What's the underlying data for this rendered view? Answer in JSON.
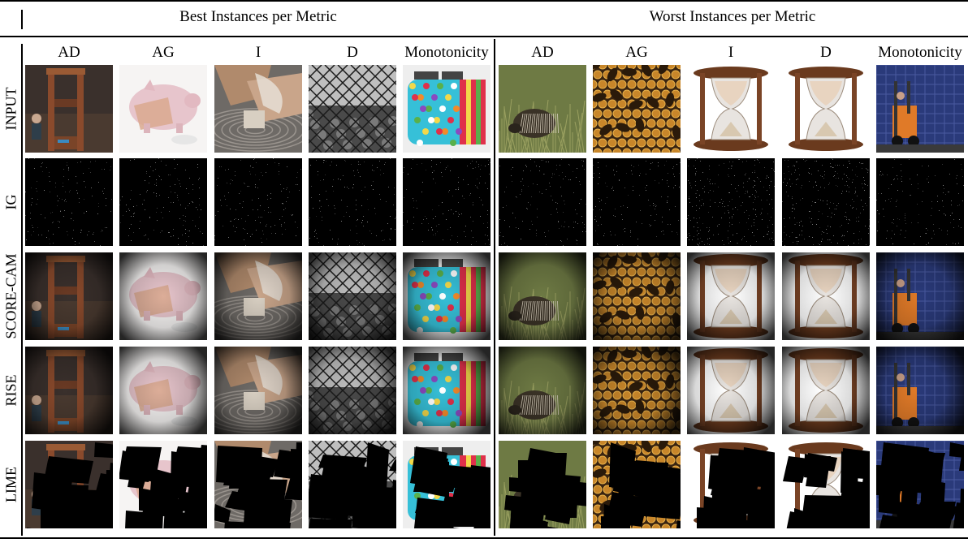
{
  "headers": {
    "best": "Best Instances per Metric",
    "worst": "Worst Instances per Metric"
  },
  "columns": [
    "AD",
    "AG",
    "I",
    "D",
    "Monotonicity",
    "AD",
    "AG",
    "I",
    "D",
    "Monotonicity"
  ],
  "rows": [
    {
      "label": "INPUT"
    },
    {
      "label": "IG"
    },
    {
      "label": "SCORE-CAM"
    },
    {
      "label": "RISE"
    },
    {
      "label": "LIME"
    }
  ],
  "images": [
    {
      "subject": "guillotine",
      "palette": [
        "#5a3a28",
        "#8a5a3c",
        "#2c2a2e"
      ]
    },
    {
      "subject": "piggy-bank",
      "palette": [
        "#e9c9cf",
        "#d6a08a",
        "#f4f1f0"
      ]
    },
    {
      "subject": "pottery-wheel",
      "palette": [
        "#c9b09a",
        "#8c7a6c",
        "#e6dccf"
      ]
    },
    {
      "subject": "chain-link-fence",
      "palette": [
        "#8a8a8a",
        "#3a3a3a",
        "#d0d0d0"
      ]
    },
    {
      "subject": "toaster",
      "palette": [
        "#36c0d8",
        "#e0304a",
        "#f2d84a"
      ]
    },
    {
      "subject": "echidna",
      "palette": [
        "#6e7a44",
        "#3a3226",
        "#9aa060"
      ]
    },
    {
      "subject": "honeycomb-bees",
      "palette": [
        "#c8862a",
        "#3a2410",
        "#e6b04a"
      ]
    },
    {
      "subject": "hourglass",
      "palette": [
        "#6a3a1e",
        "#e8dcc8",
        "#ffffff"
      ]
    },
    {
      "subject": "hourglass",
      "palette": [
        "#6a3a1e",
        "#e8dcc8",
        "#ffffff"
      ]
    },
    {
      "subject": "forklift",
      "palette": [
        "#3a4a8a",
        "#e07a28",
        "#1e2a5a"
      ]
    }
  ]
}
